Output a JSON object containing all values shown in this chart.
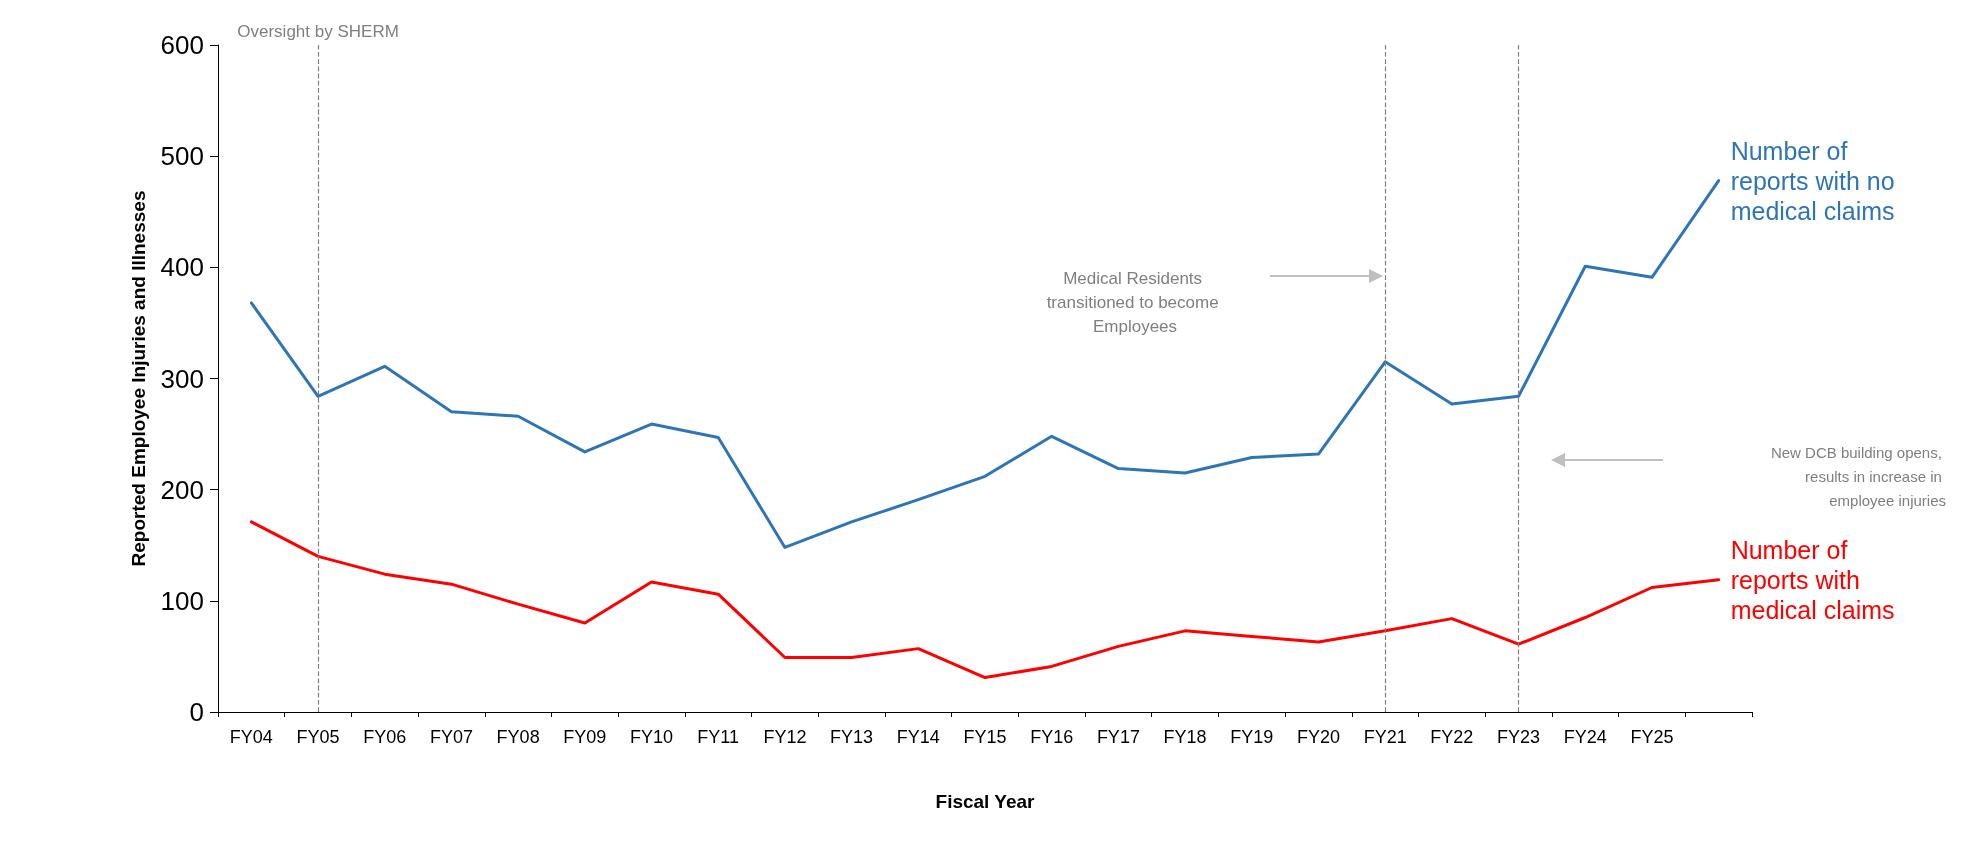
{
  "chart_data": {
    "type": "line",
    "xlabel": "Fiscal Year",
    "ylabel": "Reported Employee Injuries and Illnesses",
    "categories": [
      "FY04",
      "FY05",
      "FY06",
      "FY07",
      "FY08",
      "FY09",
      "FY10",
      "FY11",
      "FY12",
      "FY13",
      "FY14",
      "FY15",
      "FY16",
      "FY17",
      "FY18",
      "FY19",
      "FY20",
      "FY21",
      "FY22",
      "FY23",
      "FY24",
      "FY25",
      null
    ],
    "series": [
      {
        "name": "Number of reports with no medical claims",
        "color": "#2e75b6",
        "values": [
          368,
          284,
          311,
          270,
          266,
          234,
          259,
          247,
          148,
          171,
          191,
          212,
          248,
          219,
          215,
          229,
          232,
          315,
          277,
          284,
          401,
          391,
          478
        ]
      },
      {
        "name": "Number of reports with medical claims",
        "color": "#ff0000",
        "values": [
          171,
          140,
          124,
          115,
          97,
          80,
          117,
          106,
          49,
          49,
          57,
          31,
          41,
          59,
          73,
          68,
          63,
          73,
          84,
          61,
          85,
          112,
          119
        ]
      }
    ],
    "ylim": [
      0,
      600
    ],
    "yticks": [
      0,
      100,
      200,
      300,
      400,
      500,
      600
    ],
    "grid": false,
    "legend": false,
    "marker": "none",
    "line_style": "solid",
    "ref_lines": [
      {
        "axis": "x",
        "value": "FY05",
        "label": "Oversight by SHERM",
        "color": "#7f7f7f",
        "line_style": "dashed"
      },
      {
        "axis": "x",
        "value": "FY21",
        "label": null,
        "color": "#7f7f7f",
        "line_style": "dashed"
      },
      {
        "axis": "x",
        "value": "FY23",
        "label": null,
        "color": "#7f7f7f",
        "line_style": "dashed"
      }
    ],
    "annotations": [
      "Medical Residents transitioned to become Employees",
      "New DCB building opens, results in increase in employee injuries"
    ]
  }
}
